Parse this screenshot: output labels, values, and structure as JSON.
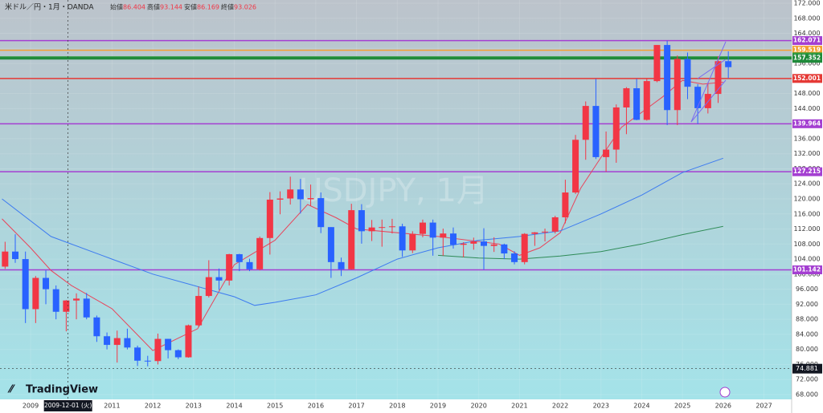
{
  "chart_data": {
    "type": "candlestick",
    "symbol": "米ドル／円・1月・OANDA",
    "watermark": "USDJPY, 1月",
    "brand": "TradingView",
    "ohlc_header": [
      {
        "label": "始値",
        "value": 86.404
      },
      {
        "label": "高値",
        "value": 93.144
      },
      {
        "label": "安値",
        "value": 86.169
      },
      {
        "label": "終値",
        "value": 93.026
      }
    ],
    "up_color": "#f23645",
    "down_color": "#2962ff",
    "xlim": [
      2008.25,
      2027.68
    ],
    "xticks": [
      2009,
      2011,
      2012,
      2013,
      2014,
      2015,
      2016,
      2017,
      2018,
      2019,
      2020,
      2021,
      2022,
      2023,
      2024,
      2025,
      2026,
      2027
    ],
    "ylim": [
      68,
      172
    ],
    "yticks": [
      {
        "value": 68,
        "label": "68.000"
      },
      {
        "value": 72,
        "label": "72.000"
      },
      {
        "value": 76,
        "label": "76.000"
      },
      {
        "value": 80,
        "label": "80.000"
      },
      {
        "value": 84,
        "label": "84.000"
      },
      {
        "value": 88,
        "label": "88.000"
      },
      {
        "value": 92,
        "label": "92.000"
      },
      {
        "value": 96,
        "label": "96.000"
      },
      {
        "value": 100,
        "label": "100.000"
      },
      {
        "value": 104,
        "label": "104.000"
      },
      {
        "value": 108,
        "label": "108.000"
      },
      {
        "value": 112,
        "label": "112.000"
      },
      {
        "value": 116,
        "label": "116.000"
      },
      {
        "value": 120,
        "label": "120.000"
      },
      {
        "value": 124,
        "label": "124.000"
      },
      {
        "value": 128,
        "label": "128.000"
      },
      {
        "value": 132,
        "label": "132.000"
      },
      {
        "value": 136,
        "label": "136.000"
      },
      {
        "value": 140,
        "label": "140.000"
      },
      {
        "value": 144,
        "label": "144.000"
      },
      {
        "value": 148,
        "label": "148.000"
      },
      {
        "value": 152,
        "label": "152.000"
      },
      {
        "value": 156,
        "label": "156.000"
      },
      {
        "value": 160,
        "label": "160.000"
      },
      {
        "value": 164,
        "label": "164.000"
      },
      {
        "value": 168,
        "label": "168.000"
      },
      {
        "value": 172,
        "label": "172.000"
      }
    ],
    "candles": {
      "x": [
        2008.375,
        2008.625,
        2008.875,
        2009.125,
        2009.375,
        2009.625,
        2009.875,
        2010.125,
        2010.375,
        2010.625,
        2010.875,
        2011.125,
        2011.375,
        2011.625,
        2011.875,
        2012.125,
        2012.375,
        2012.625,
        2012.875,
        2013.125,
        2013.375,
        2013.625,
        2013.875,
        2014.125,
        2014.375,
        2014.625,
        2014.875,
        2015.125,
        2015.375,
        2015.625,
        2015.875,
        2016.125,
        2016.375,
        2016.625,
        2016.875,
        2017.125,
        2017.375,
        2017.625,
        2017.875,
        2018.125,
        2018.375,
        2018.625,
        2018.875,
        2019.125,
        2019.375,
        2019.625,
        2019.875,
        2020.125,
        2020.375,
        2020.625,
        2020.875,
        2021.125,
        2021.375,
        2021.625,
        2021.875,
        2022.125,
        2022.375,
        2022.625,
        2022.875,
        2023.125,
        2023.375,
        2023.625,
        2023.875,
        2024.125,
        2024.375,
        2024.625,
        2024.875,
        2025.125,
        2025.375,
        2025.625,
        2025.875,
        2026.125
      ],
      "open": [
        102,
        106,
        104,
        90.7,
        99,
        96,
        90,
        93,
        93.5,
        88.5,
        83.5,
        81.2,
        83,
        80.5,
        77,
        76.9,
        82.8,
        79.8,
        77.9,
        86.4,
        94.2,
        99.2,
        98.3,
        105.3,
        103.2,
        101.3,
        109.6,
        119.8,
        120.1,
        122.5,
        119.9,
        120.2,
        112.5,
        103.2,
        101.3,
        117,
        111.4,
        112.4,
        112.5,
        112.7,
        106.3,
        110.7,
        113.7,
        109.7,
        110.8,
        107.8,
        108.1,
        108.7,
        107.5,
        107.9,
        105.5,
        103.2,
        110.7,
        111.1,
        111.3,
        115.1,
        121.7,
        135.7,
        144.7,
        131.1,
        133.1,
        144.3,
        149.4,
        141,
        151.3,
        160.9,
        143.6,
        157.2,
        149.8,
        144.1,
        147.9,
        156.6
      ],
      "high": [
        108.6,
        110.6,
        106,
        99.5,
        101,
        97,
        93.1,
        94.9,
        95,
        89,
        84.5,
        85,
        85.5,
        81,
        78.3,
        84.2,
        82.8,
        80,
        86.6,
        96.7,
        103.7,
        101.5,
        105.4,
        105.4,
        104.1,
        110,
        121.8,
        122,
        125.9,
        125.3,
        123.8,
        121.7,
        112.5,
        104.4,
        118.7,
        118.6,
        114.4,
        114.5,
        114.7,
        113.4,
        111.4,
        114.5,
        114.5,
        112.1,
        112.4,
        108.5,
        109.7,
        112.2,
        109.8,
        108.1,
        106.1,
        110.9,
        111.2,
        112.1,
        115.5,
        125.1,
        137,
        145.9,
        151.9,
        137.9,
        145.1,
        149.7,
        151.9,
        151.9,
        160.9,
        162,
        158.1,
        158.9,
        150.5,
        150.9,
        157.9,
        159.2
      ],
      "low": [
        101.4,
        103,
        87,
        87,
        92,
        88,
        84.8,
        88,
        88,
        82,
        80,
        76.5,
        80,
        75.6,
        75.5,
        76,
        77.6,
        77.4,
        77.8,
        86,
        93.8,
        95.8,
        97,
        100.8,
        100.8,
        101,
        105.2,
        115.9,
        118.5,
        116.1,
        118.1,
        110.9,
        99,
        99.5,
        101.2,
        108.1,
        108.8,
        107.3,
        110.8,
        104.6,
        105.6,
        109.8,
        104.9,
        104.9,
        106.8,
        104.5,
        106.5,
        101.2,
        105.9,
        104,
        102.6,
        102.6,
        107.5,
        108.7,
        110.8,
        113.5,
        121.3,
        130.4,
        130.6,
        127.2,
        129.6,
        137.2,
        140.9,
        140.8,
        151,
        139.6,
        139.6,
        146.5,
        139.9,
        142.7,
        145.5,
        152.1
      ],
      "close": [
        106,
        104,
        90.7,
        99,
        96,
        90,
        93,
        93.5,
        88.5,
        83.5,
        81.2,
        83,
        80.5,
        77,
        76.9,
        82.8,
        79.8,
        77.9,
        86.4,
        94.2,
        99.2,
        98.3,
        105.3,
        103.2,
        101.3,
        109.6,
        119.8,
        120.1,
        122.5,
        119.9,
        120.2,
        112.5,
        103.2,
        101.3,
        117,
        111.4,
        112.4,
        112.5,
        112.7,
        106.3,
        110.7,
        113.7,
        109.7,
        110.8,
        107.8,
        108.1,
        108.7,
        107.5,
        107.9,
        105.5,
        103.2,
        110.7,
        111.1,
        111.3,
        115.1,
        121.7,
        135.7,
        144.7,
        131.1,
        133.1,
        144.3,
        149.4,
        141,
        151.3,
        160.9,
        143.6,
        157.2,
        149.8,
        144.1,
        147.9,
        156.6,
        155
      ]
    },
    "series": [
      {
        "color": "#e8455c",
        "x": [
          2008.3,
          2009,
          2009.5,
          2010,
          2011,
          2012,
          2013.1,
          2014,
          2015,
          2015.8,
          2016.5,
          2017,
          2019,
          2020.5,
          2021,
          2021.5,
          2022,
          2022.5,
          2023,
          2023.5,
          2024,
          2024.5,
          2025,
          2025.5,
          2026
        ],
        "values": [
          114.7,
          107,
          101,
          97,
          90.8,
          79.7,
          85.5,
          102.5,
          109,
          118.5,
          115,
          112,
          110,
          108,
          105,
          107,
          111,
          122.8,
          131,
          139,
          143,
          147,
          151.5,
          150.5,
          151
        ]
      },
      {
        "color": "#3d7bf0",
        "x": [
          2008.3,
          2009.5,
          2011,
          2012,
          2013,
          2014,
          2014.5,
          2015,
          2016,
          2017,
          2018,
          2019,
          2020,
          2021,
          2022,
          2023,
          2024,
          2025,
          2026
        ],
        "values": [
          120,
          110,
          104,
          100,
          97,
          94,
          91.7,
          92.5,
          94.5,
          99,
          104,
          107,
          109,
          110,
          111.5,
          116,
          121,
          127,
          130.8
        ]
      },
      {
        "color": "#2e8b57",
        "x": [
          2019,
          2020,
          2021,
          2022,
          2023,
          2024,
          2025,
          2026
        ],
        "values": [
          105,
          104.3,
          104,
          104.8,
          106,
          108,
          110.5,
          112.7
        ]
      }
    ],
    "levels": [
      {
        "value": 162.071,
        "color": "#a43fd1"
      },
      {
        "value": 159.519,
        "color": "#f5a030"
      },
      {
        "value": 157.734,
        "color": "#2a9d3a"
      },
      {
        "value": 157.352,
        "color": "#1f8a3a"
      },
      {
        "value": 152.001,
        "color": "#e53935"
      },
      {
        "value": 139.964,
        "color": "#a43fd1"
      },
      {
        "value": 127.215,
        "color": "#a43fd1"
      },
      {
        "value": 101.142,
        "color": "#a43fd1"
      }
    ],
    "crosshair": {
      "x": 2009.92,
      "price": 74.881,
      "date_label": "2009-12-01 (火)"
    }
  }
}
